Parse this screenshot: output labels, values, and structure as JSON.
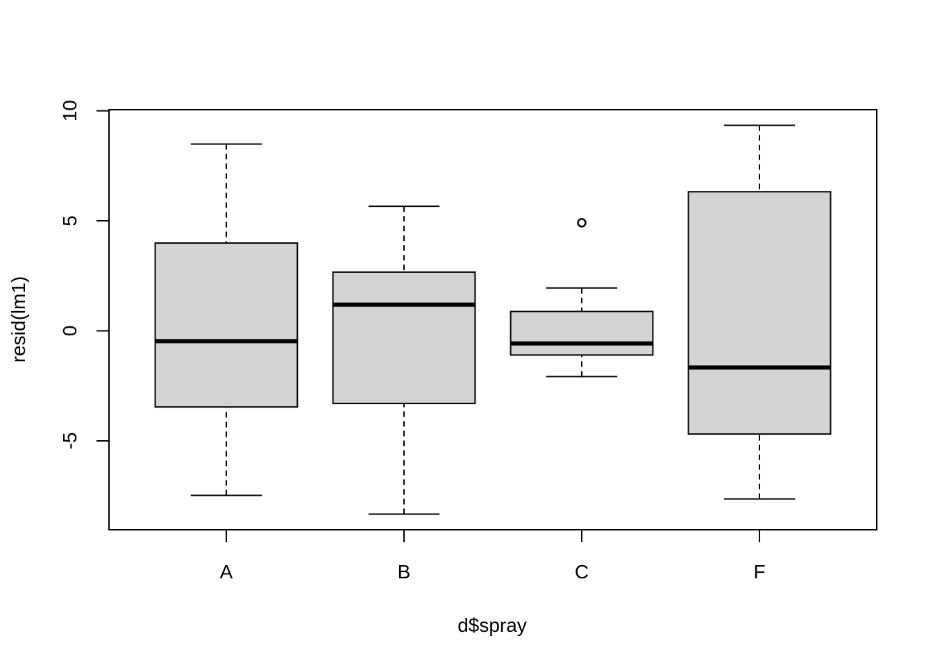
{
  "chart_data": {
    "type": "boxplot",
    "x_label": "d$spray",
    "y_label": "resid(lm1)",
    "categories": [
      "A",
      "B",
      "C",
      "F"
    ],
    "whisker_low": [
      -7.48,
      -8.33,
      -2.08,
      -7.64
    ],
    "q1": [
      -3.46,
      -3.3,
      -1.1,
      -4.69
    ],
    "median": [
      -0.47,
      1.19,
      -0.57,
      -1.67
    ],
    "q3": [
      3.99,
      2.67,
      0.88,
      6.32
    ],
    "whisker_high": [
      8.49,
      5.66,
      1.95,
      9.34
    ],
    "outliers": [
      [],
      [],
      [
        4.91
      ],
      []
    ],
    "color": "#d3d3d3",
    "ylim": [
      -9.04,
      10.05
    ],
    "yticks": [
      -5,
      0,
      5,
      10
    ]
  }
}
